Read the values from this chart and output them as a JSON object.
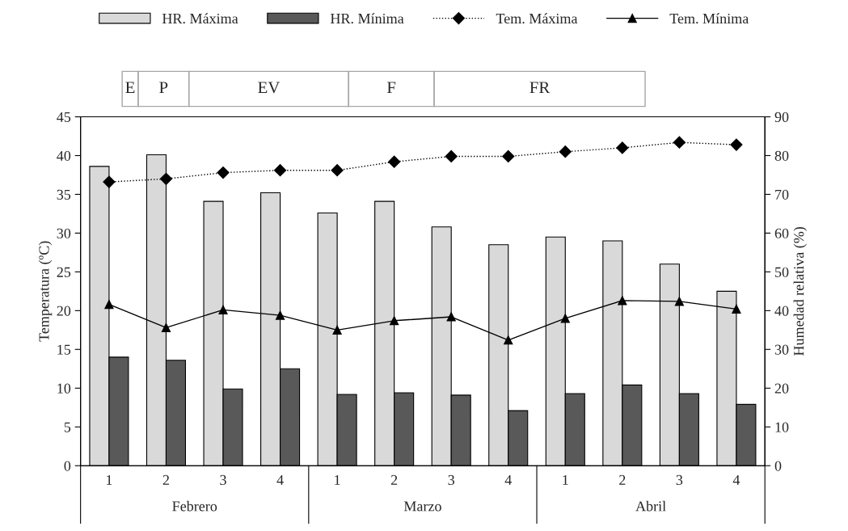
{
  "chart_data": {
    "type": "bar",
    "categories": [
      "1",
      "2",
      "3",
      "4",
      "1",
      "2",
      "3",
      "4",
      "1",
      "2",
      "3",
      "4"
    ],
    "series": [
      {
        "name": "HR. Máxima",
        "axis": "y2",
        "color": "#d9d9d9",
        "values": [
          77.2,
          80.2,
          68.2,
          70.4,
          65.2,
          68.2,
          61.6,
          57.0,
          59.0,
          58.0,
          52.0,
          45.0
        ]
      },
      {
        "name": "HR. Mínima",
        "axis": "y2",
        "color": "#595959",
        "values": [
          28.0,
          27.2,
          19.8,
          25.0,
          18.4,
          18.8,
          18.2,
          14.2,
          18.6,
          20.8,
          18.6,
          15.8
        ]
      },
      {
        "name": "Tem. Máxima",
        "type": "line",
        "color": "#000000",
        "marker": "diamond",
        "line_style": "dotted",
        "values": [
          36.6,
          37.0,
          37.8,
          38.1,
          38.1,
          39.2,
          39.9,
          39.9,
          40.5,
          41.0,
          41.7,
          41.4
        ]
      },
      {
        "name": "Tem. Mínima",
        "type": "line",
        "color": "#000000",
        "marker": "triangle",
        "line_style": "solid",
        "values": [
          20.8,
          17.8,
          20.1,
          19.4,
          17.5,
          18.7,
          19.2,
          16.2,
          19.0,
          21.3,
          21.2,
          20.2
        ]
      }
    ],
    "ylabel": "Temperatura (ºC)",
    "y2label": "Humedad relativa (%)",
    "ylim": [
      0,
      45
    ],
    "yticks": [
      0,
      5,
      10,
      15,
      20,
      25,
      30,
      35,
      40,
      45
    ],
    "y2lim": [
      0,
      90
    ],
    "y2ticks": [
      0,
      10,
      20,
      30,
      40,
      50,
      60,
      70,
      80,
      90
    ],
    "annotations": [
      "Febrero",
      "Marzo",
      "Abril",
      "E",
      "P",
      "EV",
      "F",
      "FR"
    ],
    "legend": "top",
    "grid": false
  }
}
